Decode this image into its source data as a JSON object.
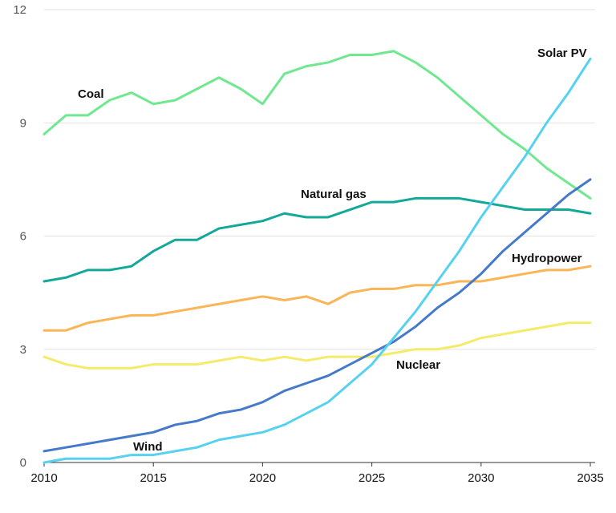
{
  "chart_data": {
    "type": "line",
    "title": "",
    "xlabel": "",
    "ylabel": "",
    "xlim": [
      2010,
      2035
    ],
    "ylim": [
      0,
      12
    ],
    "grid": true,
    "legend": "none (series labeled directly on chart)",
    "y_ticks": [
      {
        "value": 0,
        "label": "0"
      },
      {
        "value": 3,
        "label": "3"
      },
      {
        "value": 6,
        "label": "6"
      },
      {
        "value": 9,
        "label": "9"
      },
      {
        "value": 12,
        "label": "12"
      }
    ],
    "x_ticks": [
      {
        "value": 2010,
        "label": "2010"
      },
      {
        "value": 2015,
        "label": "2015"
      },
      {
        "value": 2020,
        "label": "2020"
      },
      {
        "value": 2025,
        "label": "2025"
      },
      {
        "value": 2030,
        "label": "2030"
      },
      {
        "value": 2035,
        "label": "2035"
      }
    ],
    "x": [
      2010,
      2011,
      2012,
      2013,
      2014,
      2015,
      2016,
      2017,
      2018,
      2019,
      2020,
      2021,
      2022,
      2023,
      2024,
      2025,
      2026,
      2027,
      2028,
      2029,
      2030,
      2031,
      2032,
      2033,
      2034,
      2035
    ],
    "series": [
      {
        "key": "coal",
        "name": "Coal",
        "color": "#6fe88f",
        "values": [
          8.7,
          9.2,
          9.2,
          9.6,
          9.8,
          9.5,
          9.6,
          9.9,
          10.2,
          9.9,
          9.5,
          10.3,
          10.5,
          10.6,
          10.8,
          10.8,
          10.9,
          10.6,
          10.2,
          9.7,
          9.2,
          8.7,
          8.3,
          7.8,
          7.4,
          7.0
        ]
      },
      {
        "key": "natural_gas",
        "name": "Natural gas",
        "color": "#14a89a",
        "values": [
          4.8,
          4.9,
          5.1,
          5.1,
          5.2,
          5.6,
          5.9,
          5.9,
          6.2,
          6.3,
          6.4,
          6.6,
          6.5,
          6.5,
          6.7,
          6.9,
          6.9,
          7.0,
          7.0,
          7.0,
          6.9,
          6.8,
          6.7,
          6.7,
          6.7,
          6.6
        ]
      },
      {
        "key": "hydropower",
        "name": "Hydropower",
        "color": "#f9b556",
        "values": [
          3.5,
          3.5,
          3.7,
          3.8,
          3.9,
          3.9,
          4.0,
          4.1,
          4.2,
          4.3,
          4.4,
          4.3,
          4.4,
          4.2,
          4.5,
          4.6,
          4.6,
          4.7,
          4.7,
          4.8,
          4.8,
          4.9,
          5.0,
          5.1,
          5.1,
          5.2
        ]
      },
      {
        "key": "nuclear",
        "name": "Nuclear",
        "color": "#f5eb6b",
        "values": [
          2.8,
          2.6,
          2.5,
          2.5,
          2.5,
          2.6,
          2.6,
          2.6,
          2.7,
          2.8,
          2.7,
          2.8,
          2.7,
          2.8,
          2.8,
          2.8,
          2.9,
          3.0,
          3.0,
          3.1,
          3.3,
          3.4,
          3.5,
          3.6,
          3.7,
          3.7
        ]
      },
      {
        "key": "wind",
        "name": "Wind",
        "color": "#4579c9",
        "values": [
          0.3,
          0.4,
          0.5,
          0.6,
          0.7,
          0.8,
          1.0,
          1.1,
          1.3,
          1.4,
          1.6,
          1.9,
          2.1,
          2.3,
          2.6,
          2.9,
          3.2,
          3.6,
          4.1,
          4.5,
          5.0,
          5.6,
          6.1,
          6.6,
          7.1,
          7.5
        ]
      },
      {
        "key": "solar_pv",
        "name": "Solar PV",
        "color": "#56d2f0",
        "values": [
          0.0,
          0.1,
          0.1,
          0.1,
          0.2,
          0.2,
          0.3,
          0.4,
          0.6,
          0.7,
          0.8,
          1.0,
          1.3,
          1.6,
          2.1,
          2.6,
          3.3,
          4.0,
          4.8,
          5.6,
          6.5,
          7.3,
          8.1,
          9.0,
          9.8,
          10.7
        ]
      }
    ]
  }
}
